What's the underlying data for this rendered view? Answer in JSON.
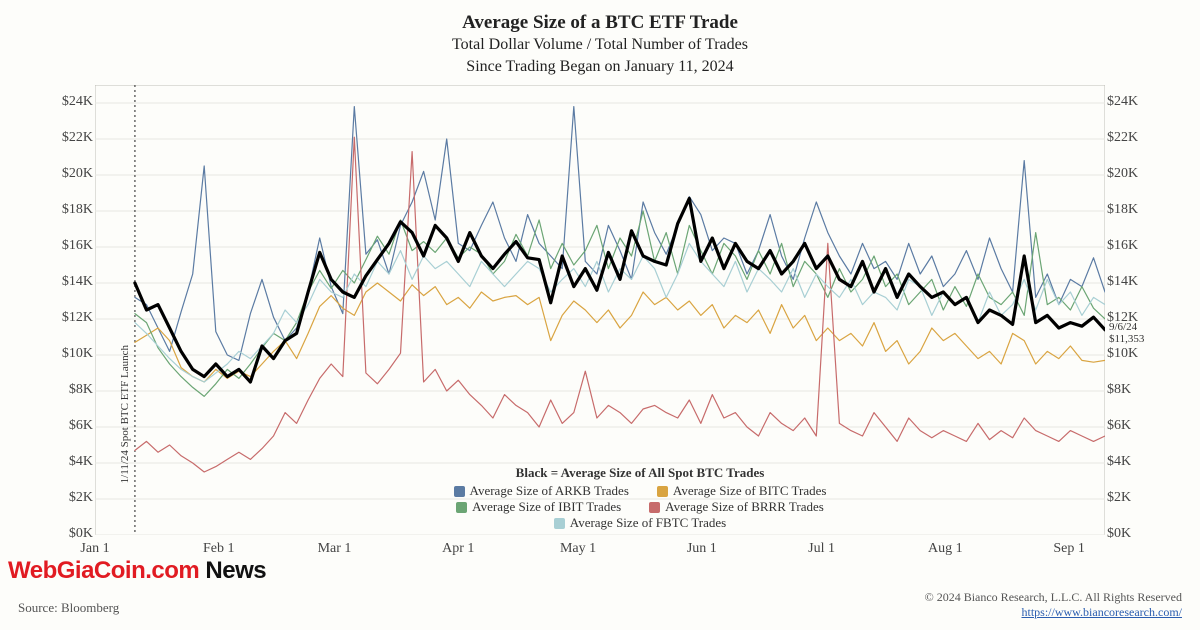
{
  "title": {
    "main": "Average Size of a BTC ETF Trade",
    "sub1": "Total Dollar Volume / Total Number of Trades",
    "sub2": "Since Trading Began on January 11, 2024",
    "main_fontsize": 19,
    "sub_fontsize": 16,
    "color": "#222222"
  },
  "chart": {
    "type": "line",
    "background_color": "#fdfdfa",
    "grid_color": "#e8e8e2",
    "plot_border_color": "#bfbfb8",
    "ylim": [
      0,
      25000
    ],
    "xlim": [
      "2024-01-01",
      "2024-09-10"
    ],
    "y_ticks": [
      0,
      2000,
      4000,
      6000,
      8000,
      10000,
      12000,
      14000,
      16000,
      18000,
      20000,
      22000,
      24000
    ],
    "y_tick_labels": [
      "$0K",
      "$2K",
      "$4K",
      "$6K",
      "$8K",
      "$10K",
      "$12K",
      "$14K",
      "$16K",
      "$18K",
      "$20K",
      "$22K",
      "$24K"
    ],
    "y_tick_fontsize": 14,
    "x_ticks": [
      "Jan 1",
      "Feb 1",
      "Mar 1",
      "Apr 1",
      "May 1",
      "Jun 1",
      "Jul 1",
      "Aug 1",
      "Sep 1"
    ],
    "x_tick_positions_days": [
      0,
      31,
      60,
      91,
      121,
      152,
      182,
      213,
      244
    ],
    "x_span_days": 253,
    "x_tick_fontsize": 14,
    "launch_line": {
      "day": 10,
      "label": "1/11/24 Spot BTC ETF Launch",
      "style": "dotted",
      "color": "#444444"
    },
    "end_annotation": {
      "date": "9/6/24",
      "value": "$11,353",
      "day": 249,
      "y_value": 11353,
      "fontsize": 11
    },
    "legend": {
      "title": "Black = Average Size of All Spot BTC Trades",
      "title_fontsize": 13,
      "items": [
        {
          "label": "Average Size of ARKB Trades",
          "color": "#5b7ba3"
        },
        {
          "label": "Average Size of BITC Trades",
          "color": "#d9a441"
        },
        {
          "label": "Average Size of IBIT Trades",
          "color": "#6ba574"
        },
        {
          "label": "Average Size of BRRR Trades",
          "color": "#c76b6b"
        },
        {
          "label": "Average Size of FBTC Trades",
          "color": "#a8cfd4"
        }
      ],
      "fontsize": 13
    },
    "series": [
      {
        "name": "ARKB",
        "color": "#5b7ba3",
        "line_width": 1.2,
        "y": [
          13200,
          12800,
          11500,
          10200,
          12400,
          14500,
          20500,
          11300,
          10000,
          9700,
          12300,
          14200,
          12100,
          10800,
          11500,
          13500,
          16500,
          13800,
          12300,
          23800,
          15600,
          16400,
          14500,
          17200,
          18500,
          20200,
          17500,
          22000,
          16200,
          15800,
          17200,
          18500,
          16500,
          15200,
          17800,
          16200,
          15500,
          14800,
          23800,
          15200,
          14500,
          17200,
          15800,
          14200,
          18500,
          16800,
          15600,
          17200,
          18800,
          17800,
          15800,
          16500,
          16200,
          14500,
          15800,
          17800,
          15500,
          14200,
          16500,
          18500,
          16800,
          15500,
          14500,
          16200,
          14800,
          15200,
          14200,
          16200,
          14500,
          15500,
          13800,
          14500,
          15800,
          14200,
          16500,
          14800,
          13500,
          20800,
          13200,
          14500,
          12800,
          14200,
          13800,
          15400,
          13500
        ]
      },
      {
        "name": "BITC",
        "color": "#d9a441",
        "line_width": 1.2,
        "y": [
          10700,
          11100,
          11500,
          10800,
          9300,
          8800,
          8500,
          9200,
          8700,
          9100,
          8800,
          9500,
          10200,
          10800,
          9800,
          11200,
          12700,
          13300,
          12600,
          12200,
          13500,
          14000,
          13500,
          13000,
          13900,
          13300,
          13800,
          12800,
          13200,
          12600,
          13500,
          13000,
          13200,
          13300,
          12800,
          13200,
          10800,
          12200,
          13000,
          12500,
          11800,
          12500,
          11500,
          12200,
          13500,
          12800,
          13200,
          12500,
          13000,
          12200,
          12800,
          11500,
          12200,
          11800,
          12500,
          11200,
          12800,
          11500,
          12200,
          10800,
          11500,
          10800,
          11200,
          10500,
          11800,
          10200,
          10800,
          9500,
          10200,
          11500,
          10800,
          11200,
          10500,
          9800,
          10200,
          9500,
          11200,
          10800,
          9500,
          10200,
          9800,
          10500,
          9700,
          9600,
          9700
        ]
      },
      {
        "name": "IBIT",
        "color": "#6ba574",
        "line_width": 1.2,
        "y": [
          12300,
          11800,
          10400,
          9500,
          8800,
          8200,
          7700,
          8400,
          9200,
          8700,
          9500,
          10400,
          11200,
          10800,
          11800,
          13500,
          14700,
          13700,
          14700,
          14000,
          15300,
          16600,
          15600,
          17500,
          15800,
          16300,
          15700,
          16500,
          15400,
          16000,
          15600,
          14500,
          15200,
          16700,
          15500,
          17500,
          14800,
          16200,
          15000,
          15800,
          17200,
          14800,
          16500,
          15500,
          18000,
          15200,
          16800,
          14500,
          17200,
          15800,
          14500,
          16200,
          15500,
          14200,
          15800,
          14500,
          16200,
          13800,
          15200,
          14500,
          13200,
          14800,
          13500,
          14200,
          15500,
          13800,
          14500,
          12800,
          13500,
          14200,
          12500,
          13800,
          12700,
          14500,
          13200,
          12800,
          13500,
          12200,
          16800,
          12800,
          13200,
          12500,
          13800,
          12600,
          12000
        ]
      },
      {
        "name": "BRRR",
        "color": "#c76b6b",
        "line_width": 1.2,
        "y": [
          4700,
          5200,
          4600,
          5000,
          4400,
          4000,
          3500,
          3800,
          4200,
          4600,
          4200,
          4800,
          5500,
          6800,
          6200,
          7500,
          8700,
          9500,
          8800,
          22100,
          9000,
          8400,
          9200,
          10100,
          21300,
          8500,
          9200,
          8000,
          8600,
          7800,
          7200,
          6500,
          7800,
          7200,
          6800,
          6000,
          7500,
          6200,
          6800,
          9100,
          6500,
          7200,
          6800,
          6200,
          7000,
          7200,
          6800,
          6500,
          7500,
          6200,
          7800,
          6500,
          6800,
          6000,
          5500,
          6800,
          6200,
          5800,
          6500,
          5500,
          16200,
          6200,
          5800,
          5500,
          6800,
          6000,
          5200,
          6500,
          5800,
          5400,
          5800,
          5500,
          5200,
          6200,
          5300,
          5800,
          5400,
          6500,
          5800,
          5500,
          5200,
          5800,
          5500,
          5200,
          5500
        ]
      },
      {
        "name": "FBTC",
        "color": "#a8cfd4",
        "line_width": 1.2,
        "y": [
          11800,
          11200,
          10500,
          9800,
          9200,
          8800,
          8500,
          9000,
          9500,
          10200,
          9800,
          10500,
          11200,
          12500,
          11800,
          12800,
          14200,
          13500,
          13200,
          14500,
          13800,
          15200,
          14500,
          15800,
          14200,
          15500,
          14800,
          15200,
          14500,
          13800,
          15200,
          14500,
          13800,
          14500,
          15200,
          14800,
          13500,
          14200,
          14800,
          13800,
          15200,
          13500,
          14800,
          14200,
          15500,
          14800,
          13200,
          14500,
          16200,
          15200,
          14500,
          13800,
          15200,
          13500,
          14800,
          14200,
          13500,
          14800,
          13200,
          14500,
          13800,
          13200,
          14200,
          12800,
          13500,
          13200,
          12500,
          14200,
          13800,
          12200,
          13500,
          12800,
          13200,
          11800,
          13500,
          12200,
          12800,
          14200,
          12500,
          14200,
          12800,
          13500,
          12200,
          13200,
          12800
        ]
      },
      {
        "name": "ALL",
        "color": "#000000",
        "line_width": 3.2,
        "y": [
          14000,
          12500,
          12800,
          11500,
          10200,
          9200,
          8800,
          9500,
          8800,
          9200,
          8500,
          10500,
          9800,
          10800,
          11200,
          13500,
          15700,
          14200,
          13500,
          13200,
          14400,
          15300,
          16200,
          17400,
          16800,
          15500,
          17200,
          16500,
          15200,
          16800,
          15500,
          14800,
          15600,
          16300,
          15400,
          15300,
          12900,
          15500,
          13800,
          14800,
          13600,
          15700,
          14200,
          16900,
          15500,
          15200,
          15000,
          17300,
          18700,
          15200,
          16500,
          14800,
          16200,
          15200,
          14800,
          15800,
          14500,
          15200,
          16200,
          14800,
          15500,
          14200,
          13800,
          15200,
          13500,
          14800,
          13200,
          14500,
          13800,
          13200,
          13500,
          12800,
          13200,
          11800,
          12500,
          12200,
          11700,
          15500,
          11800,
          12200,
          11500,
          11800,
          11600,
          12100,
          11400
        ]
      }
    ]
  },
  "footer": {
    "source": "Source: Bloomberg",
    "copyright": "© 2024 Bianco Research, L.L.C. All Rights Reserved",
    "url": "https://www.biancoresearch.com/",
    "fontsize": 12
  },
  "watermark": {
    "part1": "WebGiaCoin.com",
    "part2": " News",
    "color1": "#e11b22",
    "color2": "#111111",
    "fontsize": 24
  }
}
